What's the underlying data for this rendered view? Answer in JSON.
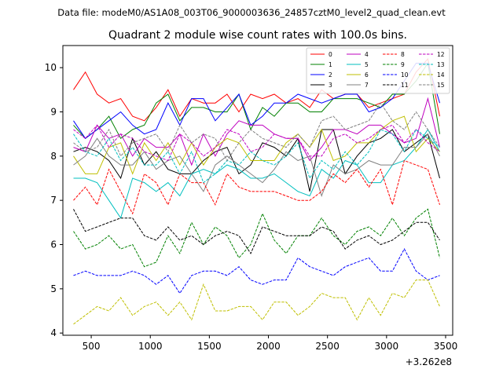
{
  "chart_data": {
    "type": "line",
    "suptitle": "Data file: modeM0/AS1A08_003T06_9000003636_24857cztM0_level2_quad_clean.evt",
    "title": "Quadrant 2 module wise count rates with 100.0s bins.",
    "xlabel": "",
    "ylabel": "",
    "x_offset_label": "+3.262e8",
    "xlim": [
      260,
      3560
    ],
    "ylim": [
      3.95,
      10.5
    ],
    "xticks": [
      500,
      1000,
      1500,
      2000,
      2500,
      3000,
      3500
    ],
    "yticks": [
      4,
      5,
      6,
      7,
      8,
      9,
      10
    ],
    "legend_position": "upper-right",
    "x": [
      350,
      450,
      550,
      650,
      750,
      850,
      950,
      1050,
      1150,
      1250,
      1350,
      1450,
      1550,
      1650,
      1750,
      1850,
      1950,
      2050,
      2150,
      2250,
      2350,
      2450,
      2550,
      2650,
      2750,
      2850,
      2950,
      3050,
      3150,
      3250,
      3350,
      3450
    ],
    "series": [
      {
        "name": "0",
        "color": "#ff0000",
        "dash": "solid",
        "values": [
          9.5,
          9.9,
          9.4,
          9.2,
          9.3,
          8.9,
          8.8,
          9.1,
          9.5,
          8.9,
          9.3,
          9.2,
          9.2,
          9.4,
          9.0,
          9.4,
          9.3,
          9.4,
          9.2,
          9.3,
          9.1,
          9.5,
          9.3,
          9.4,
          9.4,
          9.1,
          9.2,
          9.3,
          9.4,
          9.9,
          10.2,
          8.9
        ]
      },
      {
        "name": "1",
        "color": "#008000",
        "dash": "solid",
        "values": [
          8.7,
          8.4,
          8.6,
          8.9,
          8.4,
          8.6,
          8.7,
          9.2,
          9.4,
          8.8,
          9.1,
          9.1,
          9.0,
          9.0,
          9.4,
          8.6,
          9.1,
          8.9,
          9.2,
          9.2,
          9.0,
          9.0,
          9.3,
          9.3,
          9.3,
          9.2,
          9.1,
          9.4,
          9.4,
          9.7,
          10.1,
          8.5
        ]
      },
      {
        "name": "2",
        "color": "#0000ff",
        "dash": "solid",
        "values": [
          8.8,
          8.4,
          8.6,
          8.8,
          9.0,
          8.7,
          8.5,
          8.6,
          9.2,
          8.7,
          9.3,
          9.3,
          8.8,
          9.1,
          9.4,
          8.7,
          8.9,
          9.2,
          9.2,
          9.4,
          9.3,
          9.2,
          9.3,
          9.4,
          9.4,
          9.0,
          9.1,
          9.3,
          9.7,
          10.1,
          10.1,
          9.2
        ]
      },
      {
        "name": "3",
        "color": "#000000",
        "dash": "solid",
        "values": [
          8.1,
          8.2,
          8.1,
          7.9,
          7.5,
          8.4,
          7.8,
          8.1,
          7.7,
          7.6,
          7.6,
          7.9,
          8.1,
          8.2,
          7.6,
          7.8,
          8.3,
          8.2,
          8.0,
          8.4,
          7.2,
          8.6,
          8.6,
          7.6,
          8.0,
          8.3,
          8.4,
          8.6,
          8.1,
          8.3,
          8.5,
          7.5
        ]
      },
      {
        "name": "4",
        "color": "#bf00bf",
        "dash": "solid",
        "values": [
          8.2,
          8.1,
          8.7,
          8.4,
          8.5,
          8.0,
          8.4,
          8.2,
          8.2,
          8.5,
          7.8,
          8.5,
          8.0,
          8.5,
          8.8,
          8.7,
          8.7,
          8.5,
          8.4,
          8.4,
          7.9,
          8.2,
          8.6,
          8.6,
          8.5,
          8.7,
          8.7,
          8.5,
          8.3,
          8.4,
          9.3,
          8.2
        ]
      },
      {
        "name": "5",
        "color": "#00bfbf",
        "dash": "solid",
        "values": [
          7.5,
          7.5,
          7.4,
          7.0,
          6.6,
          7.5,
          7.4,
          7.2,
          7.4,
          7.1,
          7.6,
          7.7,
          7.6,
          7.8,
          7.7,
          7.5,
          7.5,
          7.6,
          7.4,
          7.2,
          7.1,
          7.7,
          7.5,
          7.9,
          7.8,
          7.4,
          7.4,
          7.8,
          7.9,
          8.2,
          8.6,
          8.1
        ]
      },
      {
        "name": "6",
        "color": "#bfbf00",
        "dash": "solid",
        "values": [
          8.0,
          7.6,
          7.6,
          8.2,
          8.3,
          7.6,
          8.3,
          7.9,
          8.3,
          7.8,
          8.3,
          7.8,
          8.2,
          8.4,
          8.3,
          7.9,
          7.9,
          7.9,
          8.3,
          8.5,
          8.2,
          8.6,
          7.9,
          8.0,
          8.3,
          8.3,
          8.6,
          8.8,
          8.9,
          8.1,
          8.4,
          8.1
        ]
      },
      {
        "name": "7",
        "color": "#808080",
        "dash": "solid",
        "values": [
          7.8,
          8.0,
          8.4,
          8.0,
          7.8,
          7.8,
          8.1,
          7.7,
          7.9,
          8.0,
          7.6,
          7.2,
          7.8,
          8.0,
          7.8,
          7.6,
          7.4,
          7.7,
          8.1,
          7.9,
          8.0,
          7.1,
          7.8,
          7.6,
          7.7,
          7.9,
          7.8,
          7.8,
          8.2,
          8.2,
          8.5,
          8.0
        ]
      },
      {
        "name": "8",
        "color": "#ff0000",
        "dash": "dashed",
        "values": [
          7.0,
          7.3,
          6.9,
          7.7,
          7.2,
          6.7,
          7.6,
          7.4,
          6.9,
          7.6,
          7.4,
          7.4,
          6.9,
          7.6,
          7.3,
          7.2,
          7.2,
          7.2,
          7.1,
          7.0,
          7.0,
          7.2,
          7.6,
          7.4,
          7.7,
          7.3,
          7.7,
          6.9,
          7.9,
          7.8,
          7.7,
          6.9
        ]
      },
      {
        "name": "9",
        "color": "#008000",
        "dash": "dashed",
        "values": [
          6.3,
          5.9,
          6.0,
          6.2,
          5.9,
          6.0,
          5.5,
          5.6,
          6.2,
          5.8,
          6.5,
          6.0,
          6.4,
          6.2,
          5.7,
          6.0,
          6.7,
          6.1,
          5.8,
          6.2,
          6.2,
          6.6,
          6.2,
          6.0,
          6.3,
          6.4,
          6.2,
          6.6,
          6.2,
          6.6,
          6.8,
          5.7
        ]
      },
      {
        "name": "10",
        "color": "#0000ff",
        "dash": "dashed",
        "values": [
          5.3,
          5.4,
          5.3,
          5.3,
          5.3,
          5.4,
          5.3,
          5.1,
          5.3,
          4.9,
          5.3,
          5.4,
          5.4,
          5.3,
          5.5,
          5.2,
          5.1,
          5.2,
          5.2,
          5.7,
          5.5,
          5.4,
          5.3,
          5.5,
          5.6,
          5.7,
          5.4,
          5.4,
          5.9,
          5.4,
          5.2,
          5.3
        ]
      },
      {
        "name": "11",
        "color": "#000000",
        "dash": "dashed",
        "values": [
          6.8,
          6.3,
          6.4,
          6.5,
          6.6,
          6.6,
          6.2,
          6.1,
          6.4,
          6.1,
          6.2,
          6.0,
          6.2,
          6.3,
          6.2,
          5.8,
          6.4,
          6.3,
          6.2,
          6.2,
          6.2,
          6.4,
          6.3,
          5.9,
          6.1,
          6.2,
          6.0,
          6.1,
          6.3,
          6.5,
          6.5,
          6.1
        ]
      },
      {
        "name": "12",
        "color": "#bf00bf",
        "dash": "dashed",
        "values": [
          8.6,
          8.4,
          8.7,
          8.2,
          8.5,
          8.4,
          8.1,
          8.0,
          7.9,
          8.5,
          8.3,
          8.0,
          8.2,
          8.6,
          8.5,
          8.1,
          8.2,
          8.5,
          8.4,
          8.4,
          8.0,
          8.0,
          8.4,
          8.5,
          8.3,
          8.4,
          8.6,
          8.7,
          8.3,
          8.6,
          8.3,
          8.1
        ]
      },
      {
        "name": "13",
        "color": "#00bfbf",
        "dash": "dashed",
        "values": [
          8.5,
          8.1,
          8.0,
          8.4,
          7.9,
          8.2,
          7.8,
          7.8,
          8.1,
          7.6,
          8.1,
          7.4,
          7.6,
          7.9,
          7.8,
          8.1,
          7.9,
          7.8,
          8.0,
          8.3,
          7.5,
          7.9,
          7.7,
          8.1,
          7.8,
          8.1,
          8.6,
          8.5,
          8.1,
          8.6,
          8.4,
          8.2
        ]
      },
      {
        "name": "14",
        "color": "#bfbf00",
        "dash": "dashed",
        "values": [
          4.2,
          4.4,
          4.6,
          4.5,
          4.8,
          4.4,
          4.6,
          4.7,
          4.4,
          4.7,
          4.3,
          5.1,
          4.5,
          4.5,
          4.6,
          4.6,
          4.3,
          4.7,
          4.7,
          4.4,
          4.6,
          4.9,
          4.8,
          4.8,
          4.3,
          4.8,
          4.4,
          4.9,
          4.8,
          5.2,
          5.2,
          4.6
        ]
      },
      {
        "name": "15",
        "color": "#808080",
        "dash": "dashed",
        "values": [
          8.3,
          8.1,
          8.2,
          8.6,
          8.0,
          8.3,
          8.4,
          8.5,
          8.1,
          8.7,
          8.3,
          8.5,
          8.4,
          7.9,
          8.3,
          8.6,
          8.4,
          8.3,
          8.2,
          8.5,
          8.2,
          8.8,
          8.9,
          8.6,
          8.7,
          8.8,
          9.2,
          8.8,
          8.6,
          9.0,
          8.6,
          8.2
        ]
      }
    ]
  }
}
